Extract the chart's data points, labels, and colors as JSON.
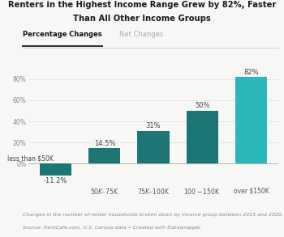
{
  "title_line1": "Renters in the Highest Income Range Grew by 82%, Faster",
  "title_line2": "Than All Other Income Groups",
  "tab1": "Percentage Changes",
  "tab2": "Net Changes",
  "categories": [
    "less than $50K",
    "$50K – $75K",
    "$75K – $100K",
    "$100 - $150K",
    "over $150K"
  ],
  "values": [
    -11.2,
    14.5,
    31,
    50,
    82
  ],
  "bar_colors": [
    "#1d7575",
    "#1d7575",
    "#1d7575",
    "#1d7575",
    "#2ab8b8"
  ],
  "label_values": [
    "-11.2%",
    "14.5%",
    "31%",
    "50%",
    "82%"
  ],
  "ytick_labels": [
    "80%",
    "60%",
    "40%",
    "20%",
    "0%"
  ],
  "yticks": [
    80,
    60,
    40,
    20,
    0
  ],
  "ylim": [
    -20,
    92
  ],
  "footnote1": "Changes in the number of renter households broken down by income group between 2015 and 2020.",
  "footnote2": "Source: RentCafe.com, U.S. Census data • Created with Datawrapper",
  "bg_color": "#f7f7f5",
  "bar_width": 0.65
}
